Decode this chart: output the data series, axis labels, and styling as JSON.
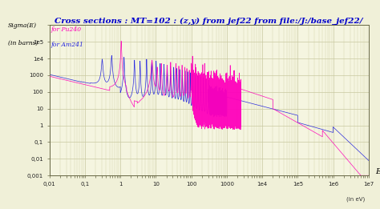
{
  "title": "Cross sections : MT=102 : (z,y) from jef22 from file:/J:/base_jef22/",
  "title_color": "#0000cc",
  "title_fontsize": 7.5,
  "xlabel": "E",
  "xlabel_suffix": "(in eV)",
  "ylabel_line1": "Sigma(E)",
  "ylabel_line2": "(in barns)",
  "ylabel_color": "#000000",
  "legend_pu240": "for Pu240",
  "legend_am241": "for Am241",
  "legend_pu240_color": "#ff00bb",
  "legend_am241_color": "#2222dd",
  "color_pu240": "#ff00bb",
  "color_am241": "#2222dd",
  "bg_color": "#f0f0d8",
  "plot_bg": "#f5f5e0",
  "grid_color": "#c8c8a0",
  "x_ticks": [
    0.01,
    0.1,
    1,
    10,
    100,
    1000,
    10000,
    100000,
    1000000,
    10000000
  ],
  "x_labels": [
    "0,01",
    "0,1",
    "1",
    "10",
    "100",
    "1000",
    "1e4",
    "1e5",
    "1e6",
    "1e7"
  ],
  "y_ticks": [
    0.001,
    0.01,
    0.1,
    1,
    10,
    100,
    1000,
    10000,
    100000,
    1000000
  ],
  "y_labels": [
    "0,001",
    "0,01",
    "0,1",
    "1",
    "10",
    "100",
    "1000",
    "1e4",
    "1e5",
    ""
  ]
}
